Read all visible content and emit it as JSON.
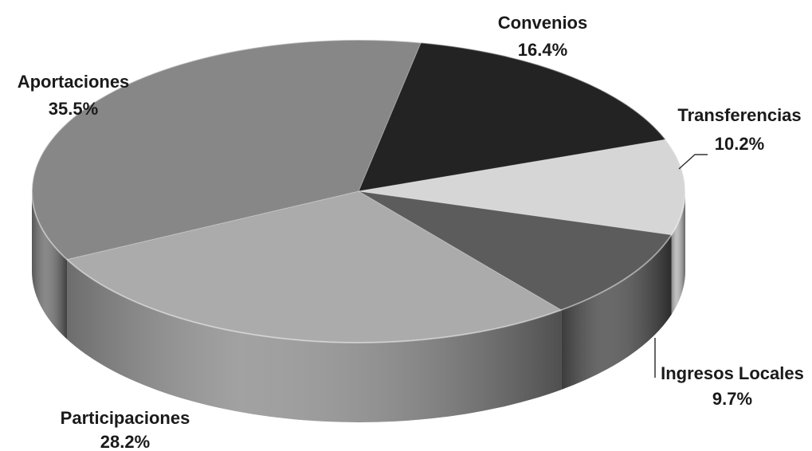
{
  "chart_data": {
    "type": "pie",
    "title": "",
    "three_d": true,
    "colors_note": "grayscale",
    "slices": [
      {
        "label": "Convenios",
        "value": 16.4,
        "display": "16.4%",
        "color": "#232323"
      },
      {
        "label": "Transferencias",
        "value": 10.2,
        "display": "10.2%",
        "color": "#d6d6d6"
      },
      {
        "label": "Ingresos Locales",
        "value": 9.7,
        "display": "9.7%",
        "color": "#5c5c5c"
      },
      {
        "label": "Participaciones",
        "value": 28.2,
        "display": "28.2%",
        "color": "#ababab"
      },
      {
        "label": "Aportaciones",
        "value": 35.5,
        "display": "35.5%",
        "color": "#878787"
      }
    ]
  }
}
